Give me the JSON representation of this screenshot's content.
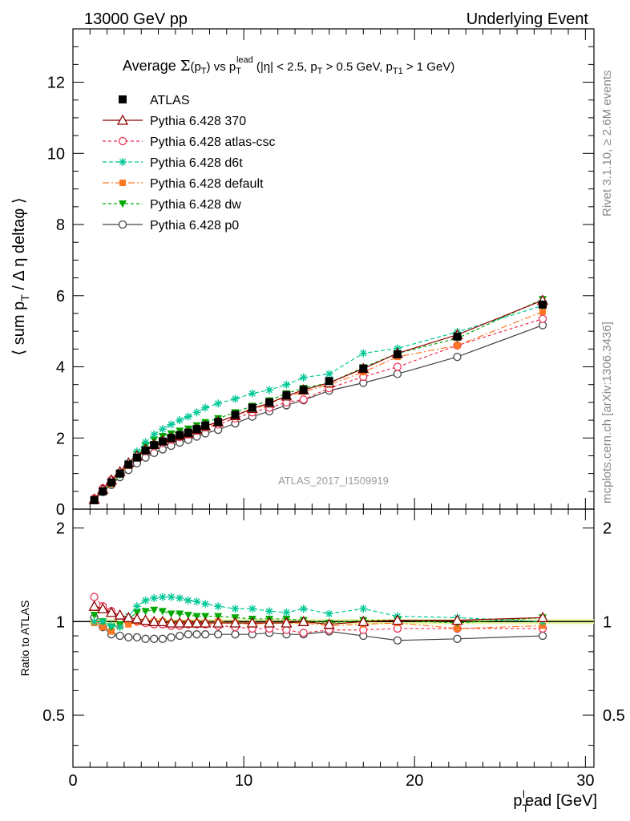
{
  "header": {
    "left": "13000 GeV pp",
    "right": "Underlying Event"
  },
  "side": {
    "rivet": "Rivet 3.1.10, ≥ 2.6M events",
    "mcplots": "mcplots.cern.ch [arXiv:1306.3436]"
  },
  "chart_data": [
    {
      "type": "line",
      "title": "Average Σ(pT) vs pT^lead (|η| < 2.5, pT > 0.5 GeV, pT1 > 1 GeV)",
      "title_parts": {
        "t1": "Average ",
        "sigma": "Σ",
        "t2": "(p",
        "sub1": "T",
        "t3": ") vs p",
        "sub2": "T",
        "sup2": "lead",
        "t4": " (|η| < 2.5, p",
        "sub3": "T",
        "t5": " > 0.5 GeV, p",
        "sub4": "T1",
        "t6": " > 1 GeV)"
      },
      "ylabel": "⟨ sum p_T / Δη deltaφ ⟩",
      "ylabel_parts": {
        "a": "⟨ sum p",
        "sub": "T",
        "b": " / Δ η deltaφ ⟩"
      },
      "watermark": "ATLAS_2017_I1509919",
      "xlim": [
        0,
        30.5
      ],
      "ylim": [
        0,
        13.5
      ],
      "yticks": [
        0,
        2,
        4,
        6,
        8,
        10,
        12
      ],
      "ytick_labels": [
        "0",
        "2",
        "4",
        "6",
        "8",
        "10",
        "12"
      ],
      "legend_position": "top-left",
      "x": [
        1.25,
        1.75,
        2.25,
        2.75,
        3.25,
        3.75,
        4.25,
        4.75,
        5.25,
        5.75,
        6.25,
        6.75,
        7.25,
        7.75,
        8.5,
        9.5,
        10.5,
        11.5,
        12.5,
        13.5,
        15,
        17,
        19,
        22.5,
        27.5
      ],
      "series": [
        {
          "name": "ATLAS",
          "color": "#000000",
          "marker": "square",
          "dash": "none",
          "line": false,
          "values": [
            0.25,
            0.5,
            0.75,
            1.0,
            1.25,
            1.45,
            1.65,
            1.8,
            1.9,
            2.0,
            2.08,
            2.15,
            2.25,
            2.35,
            2.45,
            2.65,
            2.85,
            3.0,
            3.2,
            3.35,
            3.6,
            3.95,
            4.35,
            4.85,
            5.75
          ]
        },
        {
          "name": "Pythia 6.428 370",
          "color": "#8b0000",
          "marker": "triangle-open",
          "dash": "none",
          "line": true,
          "values": [
            0.28,
            0.56,
            0.82,
            1.05,
            1.3,
            1.5,
            1.68,
            1.82,
            1.92,
            2.0,
            2.07,
            2.14,
            2.24,
            2.34,
            2.45,
            2.63,
            2.83,
            2.98,
            3.18,
            3.35,
            3.55,
            3.95,
            4.38,
            4.9,
            5.87
          ]
        },
        {
          "name": "Pythia 6.428 atlas-csc",
          "color": "#ee3355",
          "marker": "circle-open",
          "dash": "4,3",
          "line": true,
          "values": [
            0.3,
            0.58,
            0.82,
            1.02,
            1.25,
            1.45,
            1.63,
            1.77,
            1.86,
            1.95,
            2.03,
            2.1,
            2.2,
            2.3,
            2.38,
            2.55,
            2.72,
            2.85,
            3.0,
            3.08,
            3.4,
            3.72,
            4.0,
            4.6,
            5.35
          ]
        },
        {
          "name": "Pythia 6.428 d6t",
          "color": "#00c896",
          "marker": "star",
          "dash": "5,3",
          "line": true,
          "values": [
            0.25,
            0.5,
            0.73,
            0.96,
            1.3,
            1.62,
            1.88,
            2.1,
            2.25,
            2.38,
            2.5,
            2.6,
            2.72,
            2.85,
            2.97,
            3.1,
            3.25,
            3.35,
            3.5,
            3.7,
            3.8,
            4.38,
            4.52,
            4.98,
            5.72
          ]
        },
        {
          "name": "Pythia 6.428 default",
          "color": "#ff7722",
          "marker": "square-filled",
          "dash": "8,3,2,3",
          "line": true,
          "values": [
            0.25,
            0.48,
            0.7,
            0.97,
            1.22,
            1.45,
            1.64,
            1.79,
            1.9,
            1.97,
            2.05,
            2.13,
            2.22,
            2.32,
            2.45,
            2.62,
            2.8,
            2.97,
            3.16,
            3.3,
            3.5,
            3.85,
            4.28,
            4.6,
            5.55
          ]
        },
        {
          "name": "Pythia 6.428 dw",
          "color": "#00a800",
          "marker": "triangle-down",
          "dash": "4,3",
          "line": true,
          "values": [
            0.27,
            0.5,
            0.72,
            0.98,
            1.28,
            1.55,
            1.78,
            1.95,
            2.05,
            2.12,
            2.2,
            2.26,
            2.35,
            2.44,
            2.55,
            2.72,
            2.9,
            3.05,
            3.25,
            3.4,
            3.55,
            3.98,
            4.38,
            4.8,
            5.9
          ]
        },
        {
          "name": "Pythia 6.428 p0",
          "color": "#444444",
          "marker": "circle-open",
          "dash": "none",
          "line": true,
          "values": [
            0.26,
            0.48,
            0.68,
            0.9,
            1.1,
            1.29,
            1.45,
            1.58,
            1.68,
            1.78,
            1.87,
            1.95,
            2.04,
            2.13,
            2.23,
            2.41,
            2.6,
            2.75,
            2.92,
            3.06,
            3.33,
            3.55,
            3.8,
            4.28,
            5.17
          ]
        }
      ]
    },
    {
      "type": "line",
      "ylabel": "Ratio to ATLAS",
      "xlabel": "p_T^lead [GeV]",
      "xlabel_parts": {
        "a": "p",
        "sub": "T",
        "sup": "l",
        "b": "ead [GeV]"
      },
      "xlim": [
        0,
        30.5
      ],
      "ylim": [
        0.34,
        2.3
      ],
      "yticks": [
        0.5,
        1,
        2
      ],
      "ytick_labels": [
        "0.5",
        "1",
        "2"
      ],
      "xticks": [
        0,
        10,
        20,
        30
      ],
      "xtick_labels": [
        "0",
        "10",
        "20",
        "30"
      ],
      "x": [
        1.25,
        1.75,
        2.25,
        2.75,
        3.25,
        3.75,
        4.25,
        4.75,
        5.25,
        5.75,
        6.25,
        6.75,
        7.25,
        7.75,
        8.5,
        9.5,
        10.5,
        11.5,
        12.5,
        13.5,
        15,
        17,
        19,
        22.5,
        27.5
      ],
      "series": [
        {
          "name": "ATLAS",
          "color": "#000000",
          "values": [
            1,
            1,
            1,
            1,
            1,
            1,
            1,
            1,
            1,
            1,
            1,
            1,
            1,
            1,
            1,
            1,
            1,
            1,
            1,
            1,
            1,
            1,
            1,
            1,
            1
          ]
        },
        {
          "name": "Pythia 6.428 370",
          "color": "#8b0000",
          "values": [
            1.12,
            1.1,
            1.07,
            1.05,
            1.03,
            1.02,
            1.01,
            1.0,
            1.0,
            0.99,
            0.99,
            0.99,
            0.99,
            0.99,
            0.99,
            0.99,
            0.99,
            0.99,
            0.99,
            1.0,
            0.98,
            1.0,
            1.01,
            1.01,
            1.03
          ]
        },
        {
          "name": "Pythia 6.428 atlas-csc",
          "color": "#ee3355",
          "values": [
            1.2,
            1.12,
            1.08,
            1.02,
            1.0,
            1.0,
            0.99,
            0.98,
            0.98,
            0.97,
            0.97,
            0.98,
            0.98,
            0.98,
            0.97,
            0.96,
            0.95,
            0.95,
            0.94,
            0.92,
            0.94,
            0.94,
            0.95,
            0.95,
            0.95
          ]
        },
        {
          "name": "Pythia 6.428 d6t",
          "color": "#00c896",
          "values": [
            1.0,
            1.0,
            0.97,
            0.96,
            1.04,
            1.12,
            1.17,
            1.19,
            1.2,
            1.2,
            1.19,
            1.17,
            1.16,
            1.14,
            1.12,
            1.1,
            1.1,
            1.08,
            1.07,
            1.1,
            1.06,
            1.1,
            1.04,
            1.03,
            1.0
          ]
        },
        {
          "name": "Pythia 6.428 default",
          "color": "#ff7722",
          "values": [
            0.99,
            0.96,
            0.93,
            0.97,
            0.98,
            1.0,
            1.0,
            1.0,
            1.0,
            0.99,
            0.99,
            0.99,
            0.99,
            0.99,
            1.0,
            0.99,
            0.98,
            0.99,
            0.99,
            0.99,
            0.97,
            0.98,
            0.99,
            0.95,
            0.97
          ]
        },
        {
          "name": "Pythia 6.428 dw",
          "color": "#00a800",
          "values": [
            1.05,
            1.0,
            0.96,
            0.98,
            1.02,
            1.07,
            1.08,
            1.09,
            1.08,
            1.06,
            1.06,
            1.05,
            1.04,
            1.04,
            1.04,
            1.03,
            1.02,
            1.02,
            1.02,
            1.01,
            0.99,
            1.01,
            1.01,
            0.99,
            1.03
          ]
        },
        {
          "name": "Pythia 6.428 p0",
          "color": "#444444",
          "values": [
            1.03,
            0.96,
            0.91,
            0.9,
            0.89,
            0.89,
            0.88,
            0.88,
            0.88,
            0.89,
            0.9,
            0.91,
            0.91,
            0.91,
            0.91,
            0.91,
            0.91,
            0.92,
            0.91,
            0.91,
            0.93,
            0.9,
            0.87,
            0.88,
            0.9
          ]
        }
      ]
    }
  ]
}
